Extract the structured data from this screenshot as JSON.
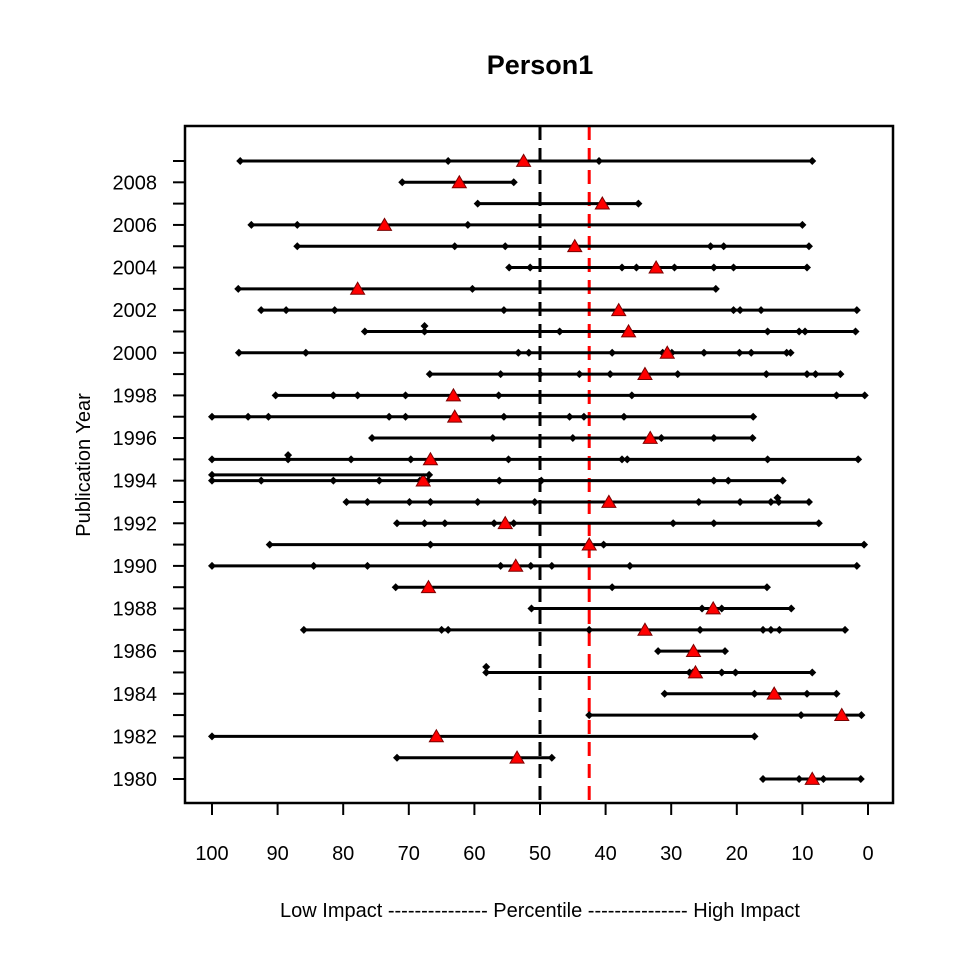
{
  "chart_data": {
    "type": "scatter",
    "title": "Person1",
    "xlabel": "Low Impact --------------- Percentile --------------- High Impact",
    "ylabel": "Publication Year",
    "xlim": [
      100,
      0
    ],
    "ylim": [
      1979.9,
      2009.1
    ],
    "x_ticks": [
      "100",
      "90",
      "80",
      "70",
      "60",
      "50",
      "40",
      "30",
      "20",
      "10",
      "0"
    ],
    "x_tick_values": [
      100,
      90,
      80,
      70,
      60,
      50,
      40,
      30,
      20,
      10,
      0
    ],
    "y_ticks": [
      "1980",
      "1982",
      "1984",
      "1986",
      "1988",
      "1990",
      "1992",
      "1994",
      "1996",
      "1998",
      "2000",
      "2002",
      "2004",
      "2006",
      "2008"
    ],
    "y_tick_values": [
      1980,
      1982,
      1984,
      1986,
      1988,
      1990,
      1992,
      1994,
      1996,
      1998,
      2000,
      2002,
      2004,
      2006,
      2008
    ],
    "y_minor_ticks": [
      1981,
      1983,
      1985,
      1987,
      1989,
      1991,
      1993,
      1995,
      1997,
      1999,
      2001,
      2003,
      2005,
      2007,
      2009
    ],
    "reference_lines": [
      {
        "x": 50,
        "color": "#000000",
        "style": "dashed"
      },
      {
        "x": 42.5,
        "color": "#ff0000",
        "style": "dashed"
      }
    ],
    "highlight_color": "#ff0000",
    "rows": [
      {
        "y": 2009,
        "points": [
          95.7,
          64,
          41,
          8.5
        ],
        "marker": 52.5
      },
      {
        "y": 2008,
        "points": [
          71,
          54
        ],
        "marker": 62.3
      },
      {
        "y": 2007,
        "points": [
          59.5,
          35
        ],
        "marker": 40.5
      },
      {
        "y": 2006,
        "points": [
          94,
          87,
          61,
          10
        ],
        "marker": 73.7
      },
      {
        "y": 2005,
        "points": [
          87,
          63,
          55.3,
          24,
          22,
          9
        ],
        "marker": 44.7
      },
      {
        "y": 2004,
        "points": [
          54.7,
          51.5,
          37.5,
          35.3,
          29.5,
          23.5,
          20.5,
          9.3
        ],
        "marker": 32.3
      },
      {
        "y": 2003,
        "points": [
          96,
          60.3,
          23.2
        ],
        "marker": 77.8
      },
      {
        "y": 2002,
        "points": [
          92.5,
          88.7,
          81.3,
          55.5,
          20.5,
          19.5,
          16.3,
          1.7
        ],
        "marker": 38
      },
      {
        "y": 2001,
        "points": [
          76.7,
          67.6,
          47,
          15.3,
          10.5,
          9.6,
          1.9
        ],
        "marker": 36.5
      },
      {
        "y": 2001.26,
        "points": [
          67.6
        ],
        "marker": null
      },
      {
        "y": 2000,
        "points": [
          95.9,
          85.7,
          53.3,
          51.7,
          39,
          31.3,
          29.9,
          25,
          19.6,
          17.8,
          12.4,
          11.8
        ],
        "marker": 30.6
      },
      {
        "y": 1999,
        "points": [
          66.8,
          56,
          50,
          44,
          39.3,
          29,
          15.5,
          9.3,
          8,
          4.2
        ],
        "marker": 34
      },
      {
        "y": 1998,
        "points": [
          90.3,
          81.5,
          77.8,
          70.5,
          56.3,
          36,
          4.8,
          0.5
        ],
        "marker": 63.2
      },
      {
        "y": 1997,
        "points": [
          100,
          94.5,
          91.4,
          73,
          70.5,
          55.5,
          45.5,
          43.3,
          37.2,
          17.5
        ],
        "marker": 63
      },
      {
        "y": 1996,
        "points": [
          75.6,
          57.2,
          45,
          31.5,
          23.5,
          17.6
        ],
        "marker": 33.2
      },
      {
        "y": 1995,
        "points": [
          100,
          88.4,
          78.8,
          69.7,
          54.8,
          37.5,
          36.7,
          15.3,
          1.5
        ],
        "marker": 66.7
      },
      {
        "y": 1995.2,
        "points": [
          88.4
        ],
        "marker": null
      },
      {
        "y": 1994,
        "points": [
          100,
          92.5,
          81.5,
          74.5,
          68.3,
          67.1,
          56.2,
          49.8,
          23.5,
          21.3,
          13
        ],
        "marker": 67.8
      },
      {
        "y": 1994.27,
        "points": [
          100,
          66.9
        ],
        "marker": null
      },
      {
        "y": 1993,
        "points": [
          79.5,
          76.3,
          69.9,
          66.7,
          59.5,
          50.8,
          25.8,
          19.5,
          14.8,
          13.6,
          9
        ],
        "marker": 39.5
      },
      {
        "y": 1993.2,
        "points": [
          13.8
        ],
        "marker": null
      },
      {
        "y": 1992,
        "points": [
          71.8,
          67.6,
          64.5,
          57,
          54,
          29.7,
          23.5,
          7.5
        ],
        "marker": 55.3
      },
      {
        "y": 1991,
        "points": [
          91.2,
          66.7,
          40.3,
          0.6
        ],
        "marker": 42.5
      },
      {
        "y": 1990,
        "points": [
          100,
          84.5,
          76.3,
          56,
          51.4,
          48.2,
          36.3,
          1.7
        ],
        "marker": 53.7
      },
      {
        "y": 1989,
        "points": [
          72,
          39,
          15.4
        ],
        "marker": 67
      },
      {
        "y": 1988,
        "points": [
          51.3,
          25.3,
          22.3,
          11.7
        ],
        "marker": 23.6
      },
      {
        "y": 1987,
        "points": [
          86,
          65,
          64,
          42.5,
          25.6,
          16,
          14.8,
          13.5,
          3.5
        ],
        "marker": 34
      },
      {
        "y": 1986,
        "points": [
          32,
          21.8
        ],
        "marker": 26.6
      },
      {
        "y": 1985,
        "points": [
          58.2,
          27.2,
          26.7,
          22.3,
          20.2,
          8.5
        ],
        "marker": 26.3
      },
      {
        "y": 1985.26,
        "points": [
          58.2
        ],
        "marker": null
      },
      {
        "y": 1984,
        "points": [
          31,
          17.3,
          9.3,
          4.8
        ],
        "marker": 14.3
      },
      {
        "y": 1983,
        "points": [
          42.5,
          10.2,
          1
        ],
        "marker": 4
      },
      {
        "y": 1982,
        "points": [
          100,
          17.3
        ],
        "marker": 65.8
      },
      {
        "y": 1981,
        "points": [
          71.8,
          48.2
        ],
        "marker": 53.5
      },
      {
        "y": 1980,
        "points": [
          16,
          10.5,
          6.8,
          1.1
        ],
        "marker": 8.5
      }
    ]
  }
}
